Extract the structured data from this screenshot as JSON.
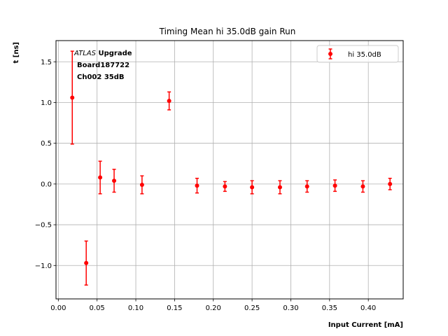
{
  "chart_data": {
    "type": "scatter",
    "title": "Timing Mean hi 35.0dB gain Run",
    "xlabel": "Input Current [mA]",
    "ylabel": "t [ns]",
    "xlim": [
      -0.003,
      0.445
    ],
    "ylim": [
      -1.41,
      1.76
    ],
    "xticks": [
      "0.00",
      "0.05",
      "0.10",
      "0.15",
      "0.20",
      "0.25",
      "0.30",
      "0.35",
      "0.40"
    ],
    "xtick_values": [
      0.0,
      0.05,
      0.1,
      0.15,
      0.2,
      0.25,
      0.3,
      0.35,
      0.4
    ],
    "yticks": [
      "−1.0",
      "−0.5",
      "0.0",
      "0.5",
      "1.0",
      "1.5"
    ],
    "ytick_values": [
      -1.0,
      -0.5,
      0.0,
      0.5,
      1.0,
      1.5
    ],
    "grid": true,
    "legend_position": "top-right",
    "series": [
      {
        "name": "hi 35.0dB",
        "color": "#ff0000",
        "marker": "circle",
        "points": [
          {
            "x": 0.018,
            "y": 1.06,
            "err": 0.57
          },
          {
            "x": 0.036,
            "y": -0.97,
            "err": 0.27
          },
          {
            "x": 0.054,
            "y": 0.08,
            "err": 0.2
          },
          {
            "x": 0.072,
            "y": 0.04,
            "err": 0.14
          },
          {
            "x": 0.108,
            "y": -0.01,
            "err": 0.11
          },
          {
            "x": 0.143,
            "y": 1.02,
            "err": 0.11
          },
          {
            "x": 0.179,
            "y": -0.02,
            "err": 0.09
          },
          {
            "x": 0.215,
            "y": -0.03,
            "err": 0.06
          },
          {
            "x": 0.25,
            "y": -0.04,
            "err": 0.08
          },
          {
            "x": 0.286,
            "y": -0.04,
            "err": 0.08
          },
          {
            "x": 0.321,
            "y": -0.03,
            "err": 0.07
          },
          {
            "x": 0.357,
            "y": -0.02,
            "err": 0.07
          },
          {
            "x": 0.393,
            "y": -0.03,
            "err": 0.07
          },
          {
            "x": 0.428,
            "y": 0.0,
            "err": 0.07
          }
        ]
      }
    ],
    "annotation": {
      "italic": "ATLAS",
      "bold": " Upgrade",
      "line2": "Board187722",
      "line3": "Ch002 35dB"
    }
  }
}
